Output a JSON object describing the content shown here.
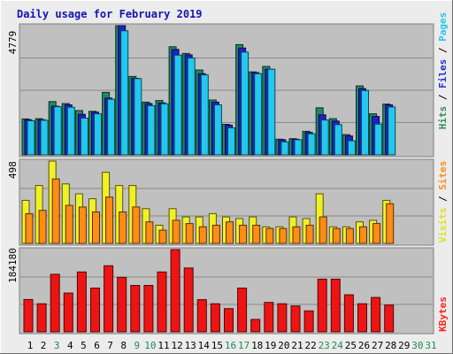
{
  "chart_data": {
    "type": "bar",
    "title": "Daily usage for February 2019",
    "categories": [
      "1",
      "2",
      "3",
      "4",
      "5",
      "6",
      "7",
      "8",
      "9",
      "10",
      "11",
      "12",
      "13",
      "14",
      "15",
      "16",
      "17",
      "18",
      "19",
      "20",
      "21",
      "22",
      "23",
      "24",
      "25",
      "26",
      "27",
      "28",
      "29",
      "30",
      "31"
    ],
    "weekend_days": [
      "3",
      "9",
      "10",
      "16",
      "17",
      "23",
      "24",
      "30",
      "31"
    ],
    "panels": [
      {
        "id": "hits",
        "max_label": "4779",
        "ylim": [
          0,
          4779
        ],
        "right_labels": [
          {
            "text": "Hits",
            "color": "#2f8f5f"
          },
          {
            "text": " / ",
            "color": "#000000"
          },
          {
            "text": "Files",
            "color": "#2030d0"
          },
          {
            "text": " / ",
            "color": "#000000"
          },
          {
            "text": "Pages",
            "color": "#20c8e8"
          }
        ],
        "series": [
          {
            "name": "Hits",
            "color": "#1e8a64",
            "values": [
              1330,
              1340,
              1970,
              1900,
              1640,
              1610,
              2310,
              4779,
              2900,
              1950,
              2010,
              4000,
              3750,
              3140,
              2030,
              1130,
              4080,
              3070,
              3270,
              580,
              600,
              870,
              1740,
              1340,
              750,
              2550,
              1520,
              1880,
              0,
              0,
              0
            ]
          },
          {
            "name": "Files",
            "color": "#2020c8",
            "values": [
              1300,
              1300,
              1800,
              1850,
              1500,
              1580,
              2100,
              4779,
              2830,
              1900,
              1920,
              3900,
              3700,
              3000,
              1950,
              1100,
              3950,
              3040,
              3170,
              560,
              580,
              830,
              1480,
              1250,
              700,
              2450,
              1420,
              1850,
              0,
              0,
              0
            ]
          },
          {
            "name": "Pages",
            "color": "#22c8ee",
            "values": [
              1260,
              1280,
              1780,
              1760,
              1360,
              1520,
              2060,
              4590,
              2820,
              1820,
              1890,
              3690,
              3580,
              2960,
              1850,
              1000,
              3800,
              3000,
              3170,
              480,
              560,
              780,
              1290,
              1120,
              520,
              2380,
              1140,
              1770,
              0,
              0,
              0
            ]
          }
        ]
      },
      {
        "id": "visits",
        "max_label": "498",
        "ylim": [
          0,
          498
        ],
        "right_labels": [
          {
            "text": "Visits",
            "color": "#e0e020"
          },
          {
            "text": " / ",
            "color": "#000000"
          },
          {
            "text": "Sites",
            "color": "#ff8c1a"
          }
        ],
        "series": [
          {
            "name": "Visits",
            "color": "#f0f028",
            "values": [
              260,
              350,
              498,
              360,
              300,
              270,
              430,
              350,
              350,
              210,
              110,
              210,
              160,
              160,
              180,
              160,
              150,
              160,
              100,
              100,
              160,
              150,
              300,
              100,
              100,
              130,
              140,
              260,
              0,
              0,
              0
            ]
          },
          {
            "name": "Sites",
            "color": "#ff8c14",
            "values": [
              180,
              200,
              390,
              230,
              220,
              190,
              280,
              190,
              220,
              130,
              80,
              140,
              120,
              100,
              110,
              130,
              110,
              110,
              90,
              90,
              100,
              110,
              160,
              90,
              90,
              100,
              120,
              240,
              0,
              0,
              0
            ]
          }
        ]
      },
      {
        "id": "kbytes",
        "max_label": "184180",
        "ylim": [
          0,
          184180
        ],
        "right_labels": [
          {
            "text": "KBytes",
            "color": "#ff2020"
          }
        ],
        "series": [
          {
            "name": "KBytes",
            "color": "#ee1414",
            "values": [
              72500,
              63000,
              129000,
              87000,
              134000,
              98000,
              148000,
              122000,
              104000,
              104000,
              134000,
              184180,
              143000,
              72000,
              63000,
              52000,
              98000,
              28000,
              66000,
              63000,
              58000,
              47000,
              118000,
              118000,
              83000,
              63000,
              77000,
              60000,
              0,
              0,
              0
            ]
          }
        ]
      }
    ]
  }
}
